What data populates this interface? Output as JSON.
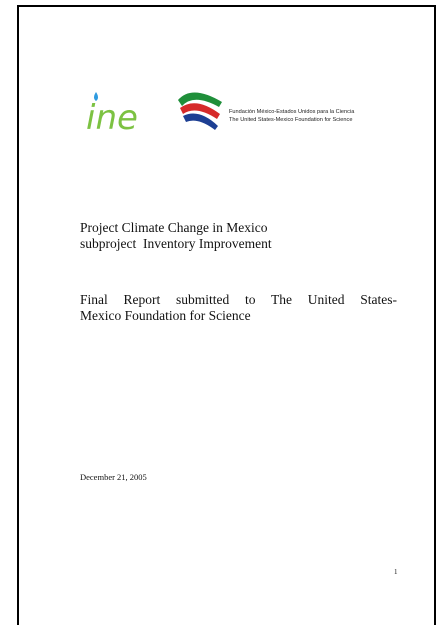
{
  "header": {
    "logo_text": "ine",
    "foundation_lines": [
      "Fundación México-Estados Unidos para la Ciencia",
      "The United States-Mexico Foundation for Science"
    ]
  },
  "title_lines": [
    "Project Climate Change in Mexico",
    "subproject  Inventory Improvement"
  ],
  "report_lines": [
    "Final Report submitted to The United States-",
    "Mexico Foundation for Science"
  ],
  "date": "December 21, 2005",
  "page_number": "1"
}
